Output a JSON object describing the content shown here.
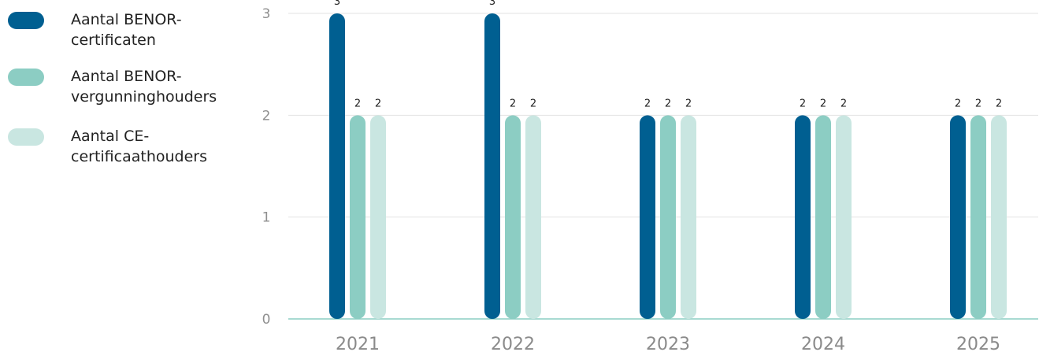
{
  "chart_data": {
    "type": "bar",
    "categories": [
      "2021",
      "2022",
      "2023",
      "2024",
      "2025"
    ],
    "series": [
      {
        "name": "Aantal BENOR-certificaten",
        "values": [
          3,
          3,
          2,
          2,
          2
        ],
        "color": "#005f91"
      },
      {
        "name": "Aantal BENOR-vergunninghouders",
        "values": [
          2,
          2,
          2,
          2,
          2
        ],
        "color": "#8ccdc3"
      },
      {
        "name": "Aantal CE-certificaathouders",
        "values": [
          2,
          2,
          2,
          2,
          2
        ],
        "color": "#c9e6e1"
      }
    ],
    "yticks": [
      "0",
      "1",
      "2",
      "3"
    ],
    "ylim": [
      0,
      3
    ],
    "grid": true,
    "legend": "left",
    "data_labels": true
  },
  "legend": {
    "items": [
      {
        "line1": "Aantal BENOR-",
        "line2": "certificaten"
      },
      {
        "line1": "Aantal BENOR-",
        "line2": "vergunninghouders"
      },
      {
        "line1": "Aantal CE-",
        "line2": "certificaathouders"
      }
    ]
  },
  "colors": {
    "grid": "#e3e3e3",
    "baseline": "#8ccdc3"
  }
}
